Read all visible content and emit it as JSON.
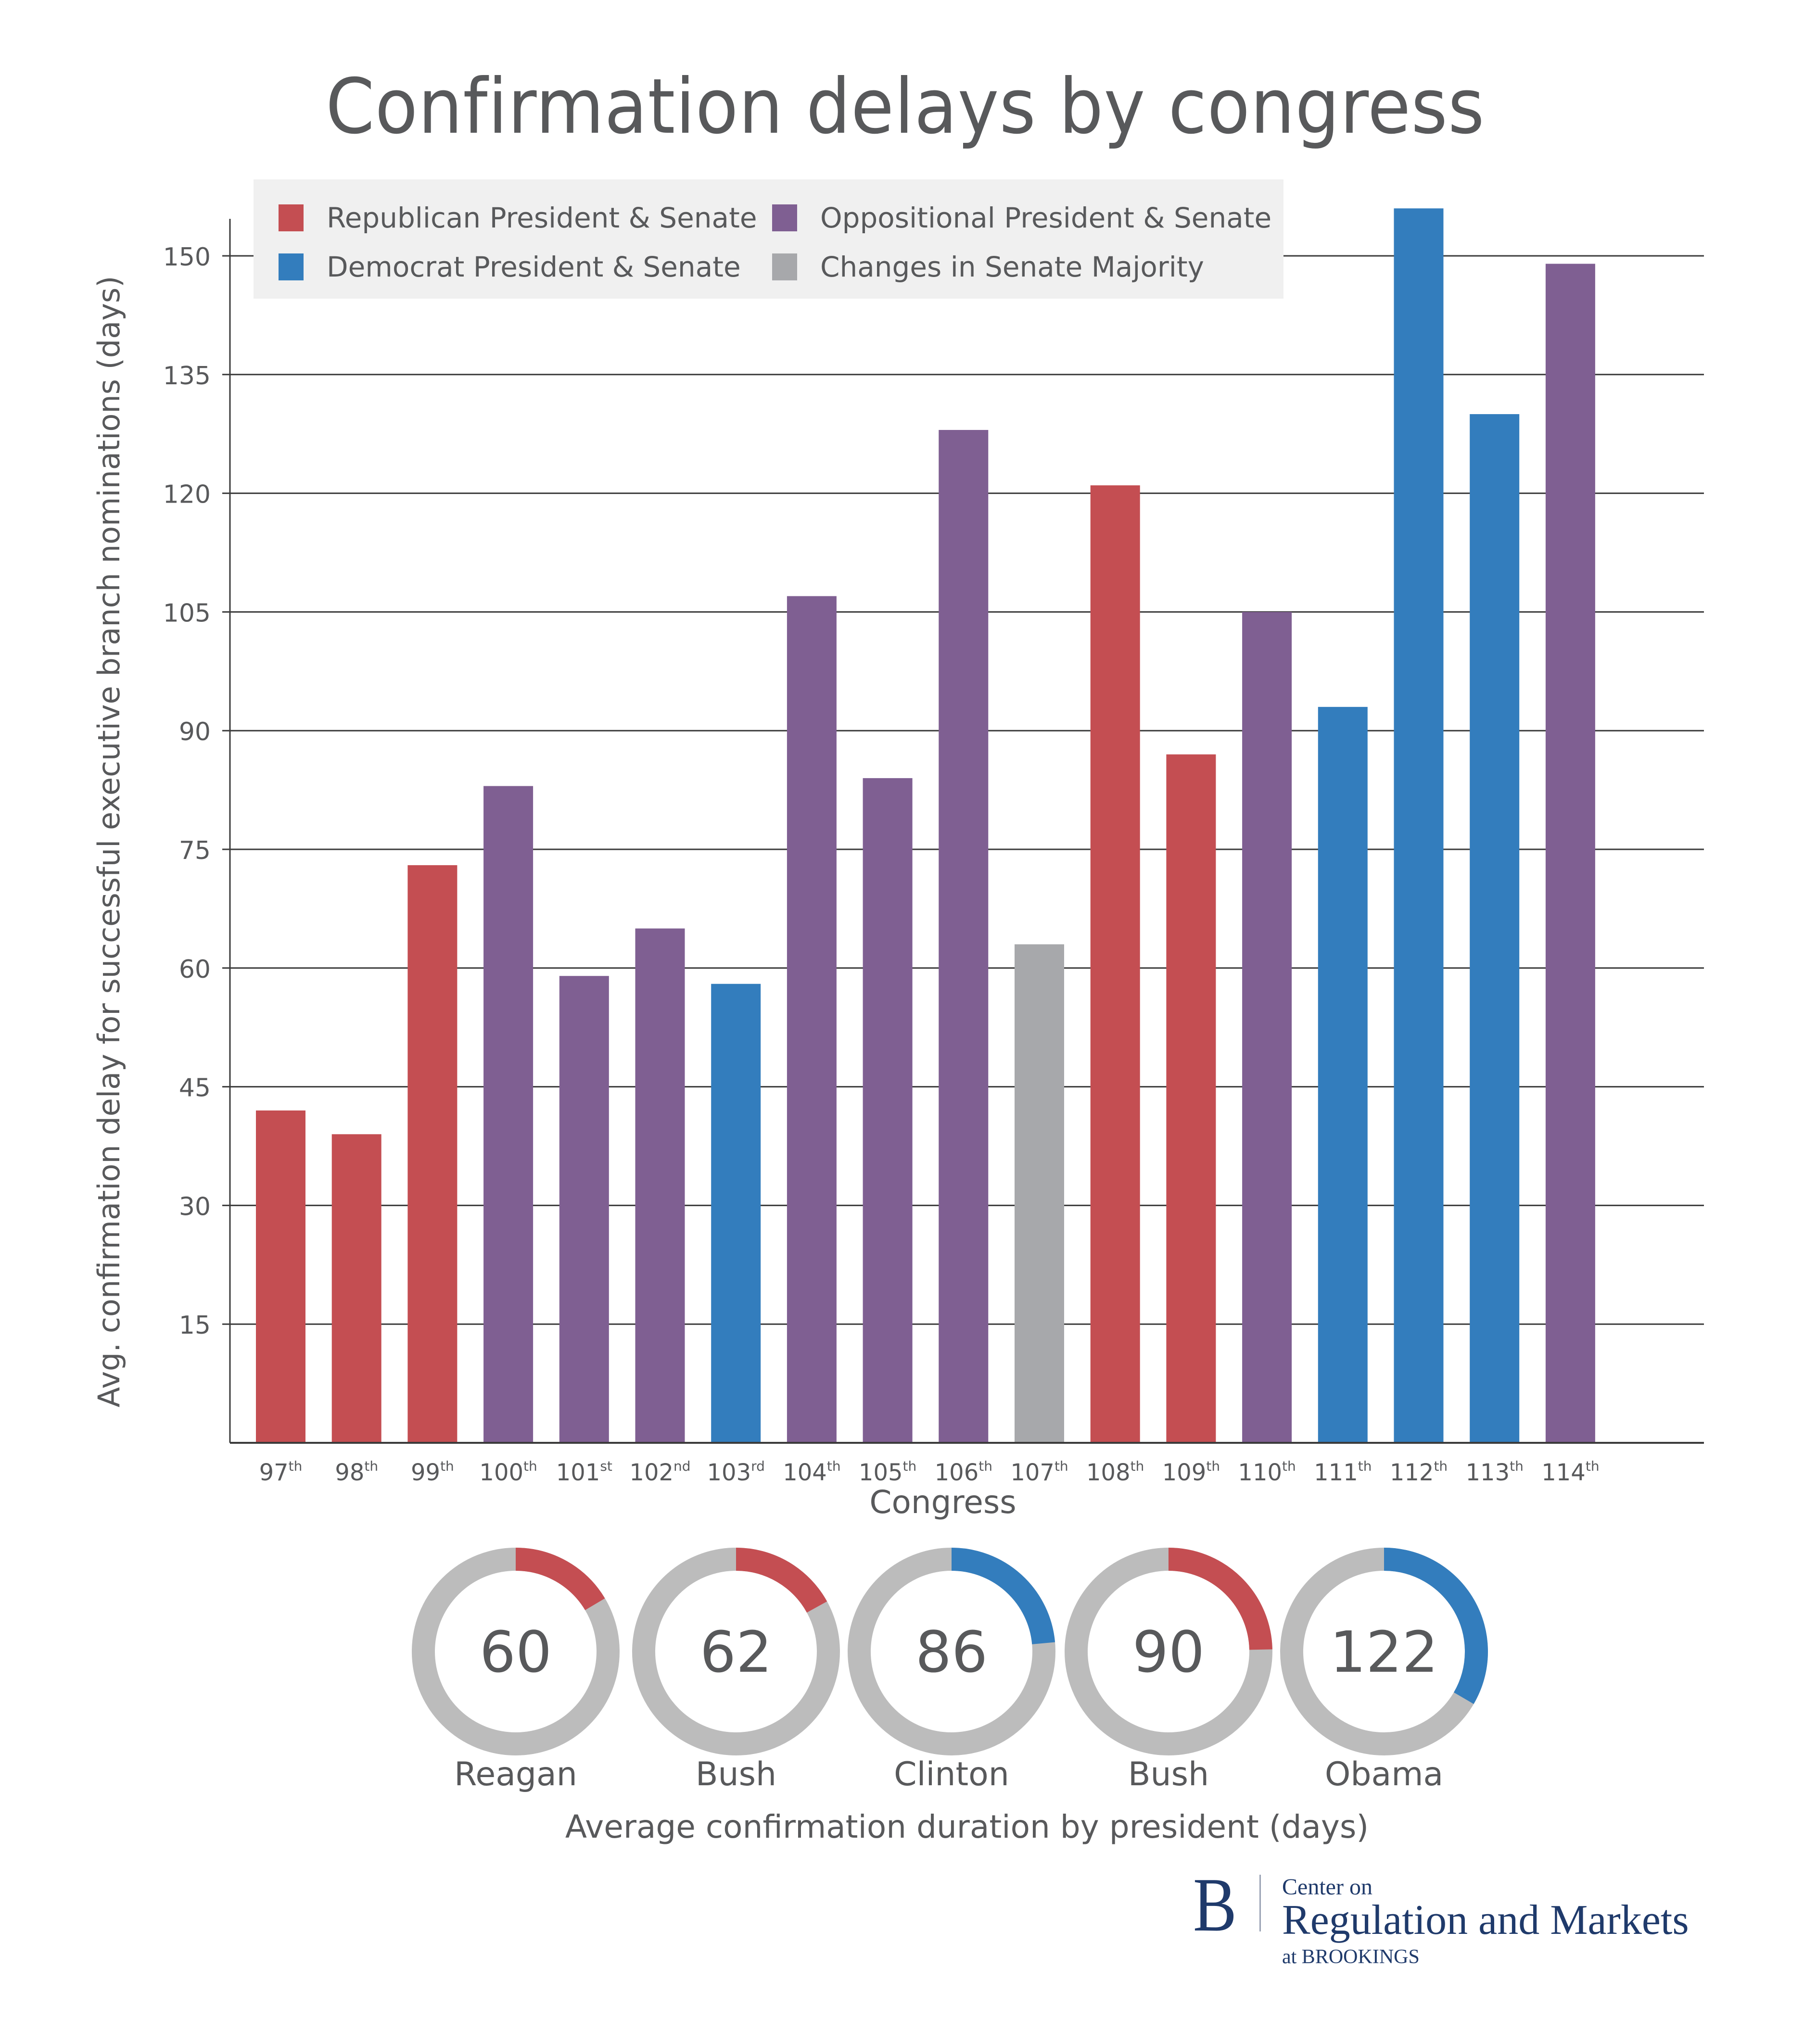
{
  "chart_data": [
    {
      "type": "bar",
      "title": "Confirmation delays by congress",
      "xlabel": "Congress",
      "ylabel": "Avg. confirmation delay for successful executive branch nominations (days)",
      "ylim": [
        0,
        155
      ],
      "yticks": [
        15,
        30,
        45,
        60,
        75,
        90,
        105,
        120,
        135,
        150
      ],
      "grid": true,
      "legend_position": "top-left",
      "categories": [
        {
          "num": "97",
          "suffix": "th"
        },
        {
          "num": "98",
          "suffix": "th"
        },
        {
          "num": "99",
          "suffix": "th"
        },
        {
          "num": "100",
          "suffix": "th"
        },
        {
          "num": "101",
          "suffix": "st"
        },
        {
          "num": "102",
          "suffix": "nd"
        },
        {
          "num": "103",
          "suffix": "rd"
        },
        {
          "num": "104",
          "suffix": "th"
        },
        {
          "num": "105",
          "suffix": "th"
        },
        {
          "num": "106",
          "suffix": "th"
        },
        {
          "num": "107",
          "suffix": "th"
        },
        {
          "num": "108",
          "suffix": "th"
        },
        {
          "num": "109",
          "suffix": "th"
        },
        {
          "num": "110",
          "suffix": "th"
        },
        {
          "num": "111",
          "suffix": "th"
        },
        {
          "num": "112",
          "suffix": "th"
        },
        {
          "num": "113",
          "suffix": "th"
        },
        {
          "num": "114",
          "suffix": "th"
        }
      ],
      "values": [
        42,
        39,
        73,
        83,
        59,
        65,
        58,
        107,
        84,
        128,
        63,
        121,
        87,
        105,
        93,
        156,
        130,
        149
      ],
      "groups": [
        "republican",
        "republican",
        "republican",
        "oppositional",
        "oppositional",
        "oppositional",
        "democrat",
        "oppositional",
        "oppositional",
        "oppositional",
        "change",
        "republican",
        "republican",
        "oppositional",
        "democrat",
        "democrat",
        "democrat",
        "oppositional"
      ],
      "legend": [
        {
          "key": "republican",
          "label": "Republican President & Senate",
          "color": "#c44e52"
        },
        {
          "key": "oppositional",
          "label": "Oppositional President & Senate",
          "color": "#7f5f92"
        },
        {
          "key": "democrat",
          "label": "Democrat President & Senate",
          "color": "#337dbd"
        },
        {
          "key": "change",
          "label": "Changes in Senate Majority",
          "color": "#a7a8ab"
        }
      ]
    },
    {
      "type": "pie",
      "title": "Average confirmation duration by president (days)",
      "full_circle_days": 365,
      "track_color": "#bcbcbc",
      "presidents": [
        {
          "name": "Reagan",
          "value": 60,
          "party": "republican"
        },
        {
          "name": "Bush",
          "value": 62,
          "party": "republican"
        },
        {
          "name": "Clinton",
          "value": 86,
          "party": "democrat"
        },
        {
          "name": "Bush",
          "value": 90,
          "party": "republican"
        },
        {
          "name": "Obama",
          "value": 122,
          "party": "democrat"
        }
      ]
    }
  ],
  "branding": {
    "logo_letter": "B",
    "line1": "Center on",
    "line2": "Regulation and Markets",
    "line3": "at BROOKINGS"
  }
}
